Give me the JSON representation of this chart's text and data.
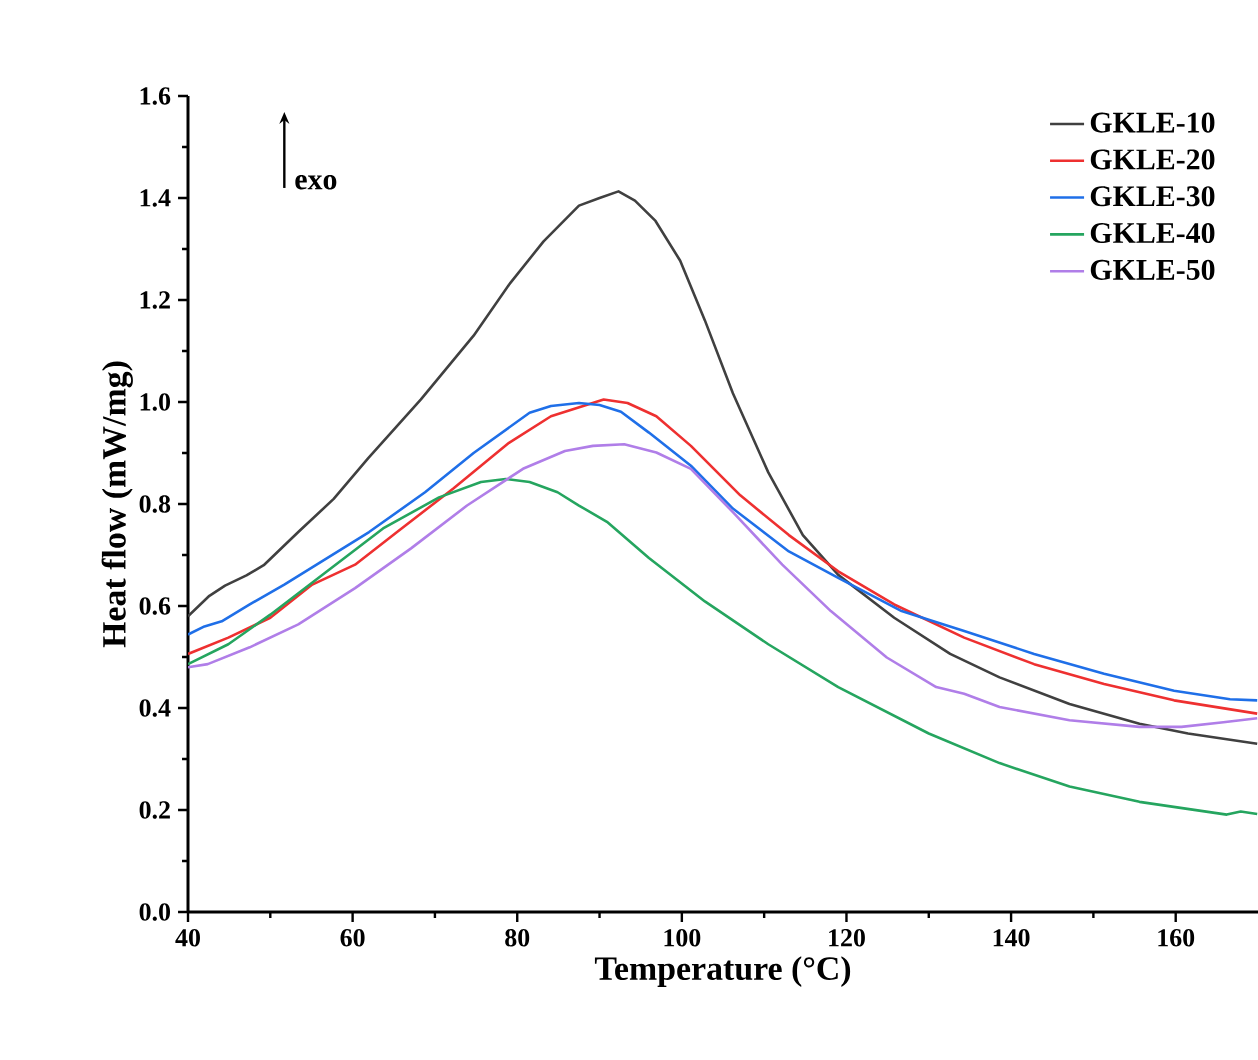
{
  "chart_data": {
    "type": "line",
    "xlabel": "Temperature (°C)",
    "ylabel": "Heat flow (mW/mg)",
    "annotations": [
      "exo"
    ],
    "xlim": [
      40,
      170
    ],
    "ylim": [
      0,
      1.6
    ],
    "xticks": [
      40,
      60,
      80,
      100,
      120,
      140,
      160
    ],
    "yticks": [
      {
        "value": 0,
        "label": "0.0"
      },
      0.2,
      0.4,
      0.6,
      0.8,
      {
        "value": 1,
        "label": "1.0"
      },
      1.2,
      1.4,
      1.6
    ],
    "legend": "top right",
    "grid": false,
    "series": [
      {
        "name": "GKLE-10",
        "color": "#404040",
        "x": [
          40,
          42.6,
          44.5,
          47.1,
          49.2,
          53.4,
          57.7,
          61.9,
          68.3,
          74.7,
          79,
          83.2,
          87.5,
          90,
          92.3,
          94.3,
          96.8,
          99.8,
          102.8,
          106.2,
          110.5,
          114.7,
          119,
          125.8,
          132.6,
          138.6,
          147.1,
          155.6,
          161.5,
          169.9
        ],
        "values": [
          0.58,
          0.62,
          0.64,
          0.66,
          0.68,
          0.745,
          0.81,
          0.89,
          1.005,
          1.13,
          1.23,
          1.315,
          1.385,
          1.4,
          1.413,
          1.395,
          1.355,
          1.277,
          1.16,
          1.017,
          0.862,
          0.739,
          0.661,
          0.577,
          0.506,
          0.46,
          0.408,
          0.369,
          0.35,
          0.33
        ]
      },
      {
        "name": "GKLE-20",
        "color": "#ee3030",
        "x": [
          40,
          44.9,
          50,
          55.1,
          60.3,
          65.4,
          72.2,
          79,
          84.1,
          90.5,
          93.4,
          96.9,
          101.1,
          107.1,
          113,
          119,
          125.8,
          134.3,
          142.8,
          151.3,
          159.8,
          169.9
        ],
        "values": [
          0.506,
          0.538,
          0.577,
          0.642,
          0.681,
          0.745,
          0.83,
          0.92,
          0.972,
          1.005,
          0.998,
          0.972,
          0.914,
          0.817,
          0.739,
          0.668,
          0.603,
          0.538,
          0.486,
          0.447,
          0.415,
          0.389
        ]
      },
      {
        "name": "GKLE-30",
        "color": "#1f6fe8",
        "x": [
          40,
          42,
          44.1,
          47.5,
          51.7,
          56.9,
          62,
          68.8,
          74.7,
          81.5,
          84.1,
          87.5,
          90,
          92.6,
          96,
          101.1,
          106.2,
          113,
          119,
          126.7,
          130,
          134.3,
          142.8,
          151.3,
          159.8,
          166.6,
          169.9
        ],
        "values": [
          0.544,
          0.56,
          0.57,
          0.603,
          0.642,
          0.694,
          0.745,
          0.823,
          0.9,
          0.979,
          0.992,
          0.998,
          0.994,
          0.981,
          0.94,
          0.875,
          0.791,
          0.707,
          0.655,
          0.59,
          0.573,
          0.551,
          0.506,
          0.467,
          0.434,
          0.417,
          0.415
        ]
      },
      {
        "name": "GKLE-40",
        "color": "#25a55f",
        "x": [
          40,
          44.9,
          50,
          56.9,
          63.7,
          70.5,
          75.6,
          78.6,
          81.5,
          84.9,
          87.5,
          90.9,
          96,
          102.8,
          110.5,
          119,
          130,
          138.6,
          147.1,
          155.6,
          166.2,
          167.9,
          169.9
        ],
        "values": [
          0.486,
          0.525,
          0.583,
          0.668,
          0.752,
          0.813,
          0.843,
          0.849,
          0.843,
          0.823,
          0.797,
          0.765,
          0.694,
          0.609,
          0.525,
          0.441,
          0.35,
          0.292,
          0.246,
          0.216,
          0.191,
          0.197,
          0.192
        ]
      },
      {
        "name": "GKLE-50",
        "color": "#b07ee8",
        "x": [
          40,
          42.4,
          47.5,
          53.4,
          60.3,
          67.1,
          73.9,
          80.7,
          85.8,
          89.2,
          93,
          96.9,
          101.1,
          106.2,
          112.2,
          118.1,
          124.9,
          130.9,
          134.3,
          138.6,
          147.1,
          155.6,
          160.7,
          165.8,
          169.9
        ],
        "values": [
          0.48,
          0.486,
          0.519,
          0.564,
          0.635,
          0.713,
          0.797,
          0.869,
          0.904,
          0.914,
          0.917,
          0.901,
          0.869,
          0.784,
          0.681,
          0.59,
          0.499,
          0.441,
          0.428,
          0.402,
          0.376,
          0.363,
          0.363,
          0.372,
          0.38
        ]
      }
    ]
  }
}
